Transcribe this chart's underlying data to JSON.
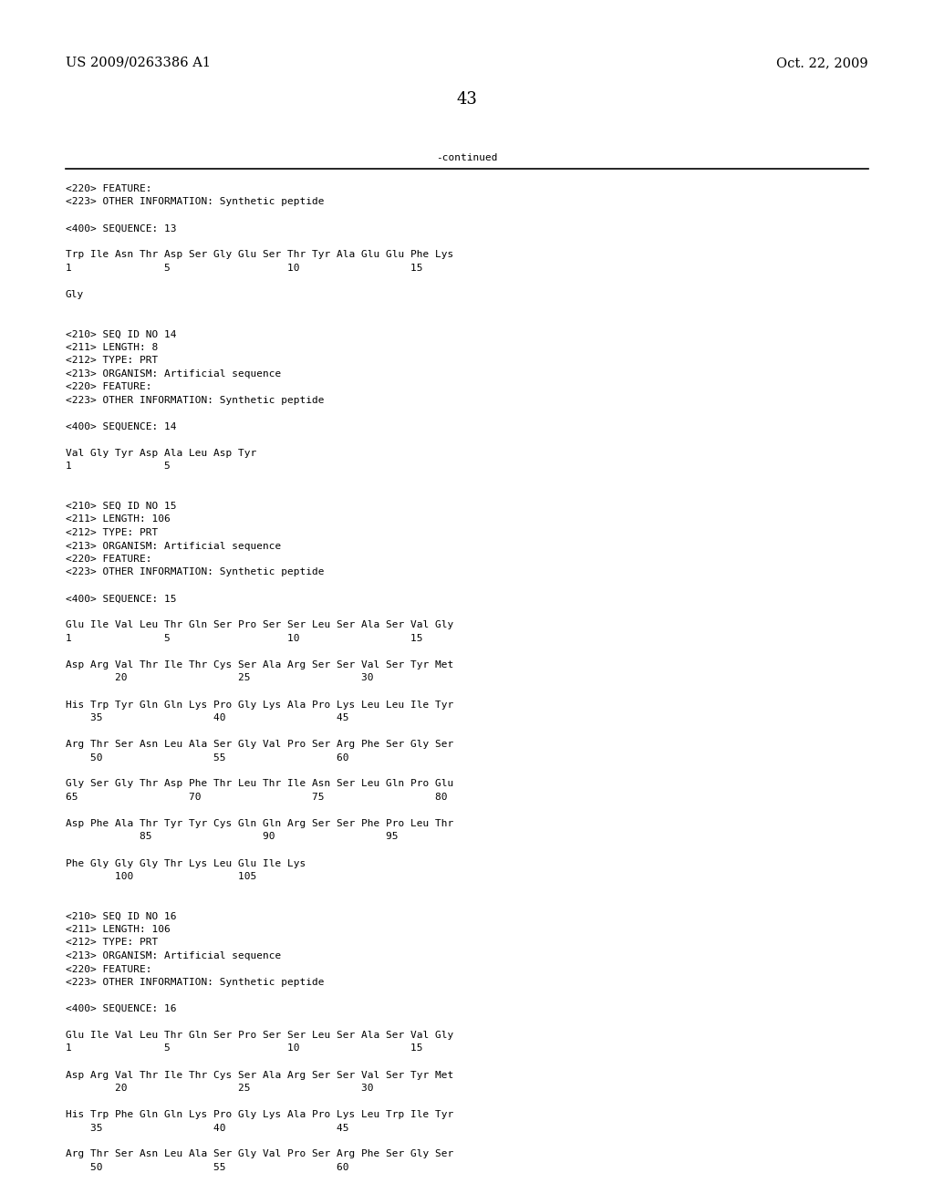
{
  "background_color": "#ffffff",
  "header_left": "US 2009/0263386 A1",
  "header_right": "Oct. 22, 2009",
  "page_number": "43",
  "continued_text": "-continued",
  "body_font_size": 8.0,
  "header_font_size": 10.5,
  "page_num_font_size": 13,
  "body_lines": [
    "<220> FEATURE:",
    "<223> OTHER INFORMATION: Synthetic peptide",
    "",
    "<400> SEQUENCE: 13",
    "",
    "Trp Ile Asn Thr Asp Ser Gly Glu Ser Thr Tyr Ala Glu Glu Phe Lys",
    "1               5                   10                  15",
    "",
    "Gly",
    "",
    "",
    "<210> SEQ ID NO 14",
    "<211> LENGTH: 8",
    "<212> TYPE: PRT",
    "<213> ORGANISM: Artificial sequence",
    "<220> FEATURE:",
    "<223> OTHER INFORMATION: Synthetic peptide",
    "",
    "<400> SEQUENCE: 14",
    "",
    "Val Gly Tyr Asp Ala Leu Asp Tyr",
    "1               5",
    "",
    "",
    "<210> SEQ ID NO 15",
    "<211> LENGTH: 106",
    "<212> TYPE: PRT",
    "<213> ORGANISM: Artificial sequence",
    "<220> FEATURE:",
    "<223> OTHER INFORMATION: Synthetic peptide",
    "",
    "<400> SEQUENCE: 15",
    "",
    "Glu Ile Val Leu Thr Gln Ser Pro Ser Ser Leu Ser Ala Ser Val Gly",
    "1               5                   10                  15",
    "",
    "Asp Arg Val Thr Ile Thr Cys Ser Ala Arg Ser Ser Val Ser Tyr Met",
    "        20                  25                  30",
    "",
    "His Trp Tyr Gln Gln Lys Pro Gly Lys Ala Pro Lys Leu Leu Ile Tyr",
    "    35                  40                  45",
    "",
    "Arg Thr Ser Asn Leu Ala Ser Gly Val Pro Ser Arg Phe Ser Gly Ser",
    "    50                  55                  60",
    "",
    "Gly Ser Gly Thr Asp Phe Thr Leu Thr Ile Asn Ser Leu Gln Pro Glu",
    "65                  70                  75                  80",
    "",
    "Asp Phe Ala Thr Tyr Tyr Cys Gln Gln Arg Ser Ser Phe Pro Leu Thr",
    "            85                  90                  95",
    "",
    "Phe Gly Gly Gly Thr Lys Leu Glu Ile Lys",
    "        100                 105",
    "",
    "",
    "<210> SEQ ID NO 16",
    "<211> LENGTH: 106",
    "<212> TYPE: PRT",
    "<213> ORGANISM: Artificial sequence",
    "<220> FEATURE:",
    "<223> OTHER INFORMATION: Synthetic peptide",
    "",
    "<400> SEQUENCE: 16",
    "",
    "Glu Ile Val Leu Thr Gln Ser Pro Ser Ser Leu Ser Ala Ser Val Gly",
    "1               5                   10                  15",
    "",
    "Asp Arg Val Thr Ile Thr Cys Ser Ala Arg Ser Ser Val Ser Tyr Met",
    "        20                  25                  30",
    "",
    "His Trp Phe Gln Gln Lys Pro Gly Lys Ala Pro Lys Leu Trp Ile Tyr",
    "    35                  40                  45",
    "",
    "Arg Thr Ser Asn Leu Ala Ser Gly Val Pro Ser Arg Phe Ser Gly Ser",
    "    50                  55                  60"
  ]
}
